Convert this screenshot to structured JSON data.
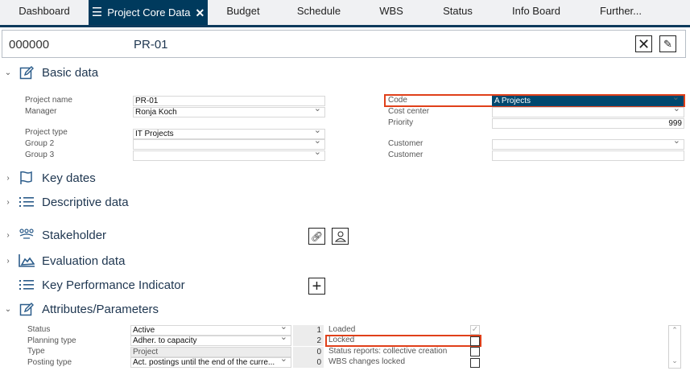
{
  "tabs": [
    {
      "label": "Dashboard"
    },
    {
      "label": "Project Core Data"
    },
    {
      "label": "Budget"
    },
    {
      "label": "Schedule"
    },
    {
      "label": "WBS"
    },
    {
      "label": "Status"
    },
    {
      "label": "Info Board"
    },
    {
      "label": "Further..."
    }
  ],
  "header": {
    "number": "000000",
    "code": "PR-01"
  },
  "sections": {
    "basic": "Basic data",
    "keydates": "Key dates",
    "descriptive": "Descriptive data",
    "stakeholder": "Stakeholder",
    "evaluation": "Evaluation data",
    "kpi": "Key Performance Indicator",
    "attributes": "Attributes/Parameters"
  },
  "basic": {
    "left": [
      {
        "label": "Project name",
        "value": "PR-01"
      },
      {
        "label": "Manager",
        "value": "Ronja Koch"
      },
      {
        "label": "Project type",
        "value": "IT Projects"
      },
      {
        "label": "Group 2",
        "value": ""
      },
      {
        "label": "Group 3",
        "value": ""
      }
    ],
    "right": [
      {
        "label": "Code",
        "value": "A Projects"
      },
      {
        "label": "Cost center",
        "value": ""
      },
      {
        "label": "Priority",
        "value": "999"
      },
      {
        "label": "Customer",
        "value": ""
      },
      {
        "label": "Customer",
        "value": ""
      }
    ]
  },
  "attributes": {
    "rows": [
      {
        "label": "Status",
        "value": "Active",
        "num": "1"
      },
      {
        "label": "Planning type",
        "value": "Adher. to capacity",
        "num": "2"
      },
      {
        "label": "Type",
        "value": "Project",
        "num": "0"
      },
      {
        "label": "Posting type",
        "value": "Act. postings until the end of the curre...",
        "num": "0"
      }
    ],
    "flags": [
      {
        "label": "Loaded",
        "checked": true
      },
      {
        "label": "Locked",
        "checked": false
      },
      {
        "label": "Status reports: collective creation",
        "checked": false
      },
      {
        "label": "WBS changes locked",
        "checked": false
      }
    ]
  },
  "colors": {
    "accent": "#003a5d",
    "highlight": "#e0401a",
    "selected": "#00486e"
  }
}
